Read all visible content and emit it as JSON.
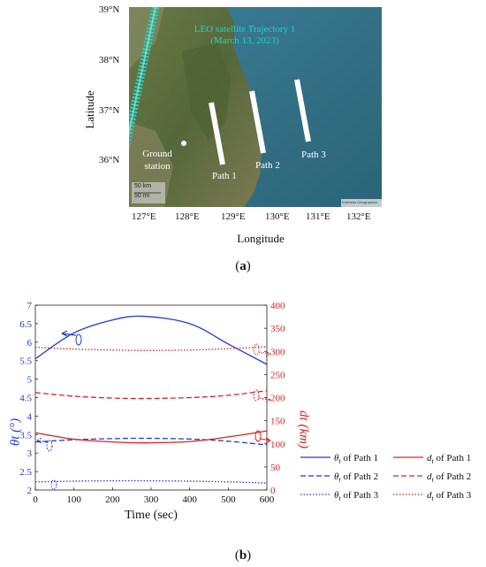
{
  "panel_a": {
    "caption": "(a)",
    "caption_letter": "a",
    "xlabel": "Longitude",
    "ylabel": "Latitude",
    "lat_ticks": [
      "39°N",
      "38°N",
      "37°N",
      "36°N"
    ],
    "lon_ticks": [
      "127°E",
      "128°E",
      "129°E",
      "130°E",
      "131°E",
      "132°E"
    ],
    "trajectory_label_line1": "LEO satellite Trajectory  1",
    "trajectory_label_line2": "(March 13, 2023)",
    "ground_station_line1": "Ground",
    "ground_station_line2": "station",
    "path_labels": [
      "Path 1",
      "Path 2",
      "Path 3"
    ],
    "scale_km": "50 km",
    "scale_mi": "50 mi",
    "attribution": "Earthstar Geographics",
    "colors": {
      "trajectory": "#1fd3c6",
      "path": "#ffffff",
      "ground_station": "#ffffff"
    }
  },
  "panel_b": {
    "caption": "(b)",
    "caption_letter": "b",
    "colors": {
      "theta": "#1f3bd6",
      "d": "#e02020"
    }
  },
  "chart_data": {
    "type": "line",
    "xlabel": "Time (sec)",
    "ylabel_left": "θt (°)",
    "ylabel_right": "dt (km)",
    "xlim": [
      0,
      600
    ],
    "ylim_left": [
      2,
      7
    ],
    "ylim_right": [
      0,
      400
    ],
    "x_ticks": [
      0,
      100,
      200,
      300,
      400,
      500,
      600
    ],
    "y_left_ticks": [
      2,
      2.5,
      3,
      3.5,
      4,
      4.5,
      5,
      5.5,
      6,
      6.5,
      7
    ],
    "y_right_ticks": [
      0,
      50,
      100,
      150,
      200,
      250,
      300,
      350,
      400
    ],
    "x": [
      0,
      100,
      200,
      280,
      400,
      500,
      600
    ],
    "series": [
      {
        "name": "θt of Path 1",
        "axis": "left",
        "style": "solid",
        "values": [
          5.55,
          6.25,
          6.6,
          6.7,
          6.5,
          5.95,
          5.4
        ]
      },
      {
        "name": "θt of Path 2",
        "axis": "left",
        "style": "dashed",
        "values": [
          3.3,
          3.36,
          3.39,
          3.4,
          3.38,
          3.32,
          3.22
        ]
      },
      {
        "name": "θt of Path 3",
        "axis": "left",
        "style": "dotted",
        "values": [
          2.22,
          2.24,
          2.25,
          2.25,
          2.24,
          2.22,
          2.19
        ]
      },
      {
        "name": "dt of Path 1",
        "axis": "right",
        "style": "solid",
        "values": [
          124,
          110,
          104,
          102,
          105,
          115,
          128
        ]
      },
      {
        "name": "dt of Path 2",
        "axis": "right",
        "style": "dashed",
        "values": [
          211,
          203,
          199,
          198,
          200,
          205,
          215
        ]
      },
      {
        "name": "dt of Path 3",
        "axis": "right",
        "style": "dotted",
        "values": [
          309,
          305,
          303,
          302,
          303,
          306,
          310
        ]
      }
    ],
    "legend": [
      {
        "sym": "θ",
        "sub": "t",
        "text": " of Path 1",
        "color": "#1f3bd6",
        "style": "solid"
      },
      {
        "sym": "d",
        "sub": "t",
        "text": " of Path 1",
        "color": "#e02020",
        "style": "solid"
      },
      {
        "sym": "θ",
        "sub": "t",
        "text": " of  Path 2",
        "color": "#1f3bd6",
        "style": "dashed"
      },
      {
        "sym": "d",
        "sub": "t",
        "text": " of Path 2",
        "color": "#e02020",
        "style": "dashed"
      },
      {
        "sym": "θ",
        "sub": "t",
        "text": " of  Path 3",
        "color": "#1f3bd6",
        "style": "dotted"
      },
      {
        "sym": "d",
        "sub": "t",
        "text": " of Path 3",
        "color": "#e02020",
        "style": "dotted"
      }
    ],
    "legend_placement": "right"
  }
}
